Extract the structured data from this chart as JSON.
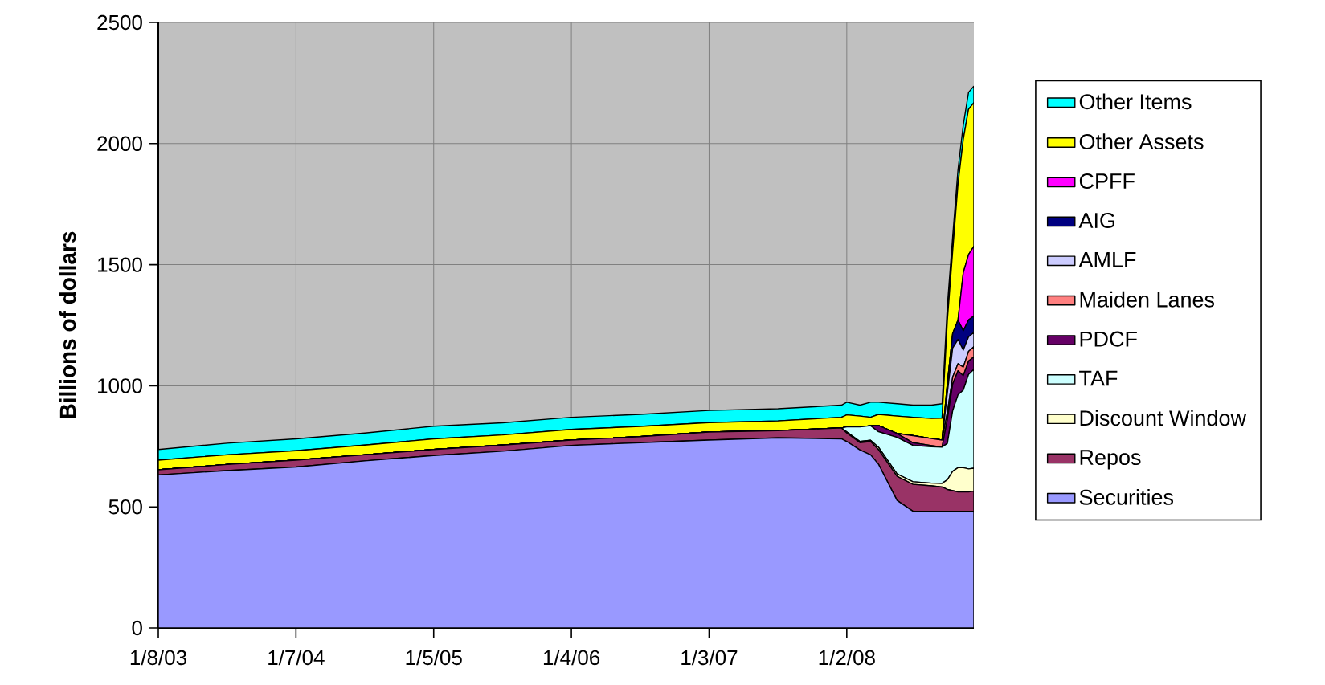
{
  "chart_data": {
    "type": "area",
    "stacked": true,
    "ylabel": "Billions of dollars",
    "grid": true,
    "legend": "right",
    "x": [
      "2003-01-08",
      "2003-07-09",
      "2004-01-07",
      "2004-07-07",
      "2005-01-05",
      "2005-07-06",
      "2006-01-04",
      "2006-07-05",
      "2007-01-03",
      "2007-07-04",
      "2007-12-19",
      "2008-01-02",
      "2008-02-06",
      "2008-03-05",
      "2008-03-26",
      "2008-05-14",
      "2008-06-25",
      "2008-08-13",
      "2008-09-10",
      "2008-09-24",
      "2008-10-08",
      "2008-10-22",
      "2008-11-05",
      "2008-11-19",
      "2008-12-03"
    ],
    "xlim": [
      "2003-01-08",
      "2008-12-03"
    ],
    "xticks": [
      {
        "value": "2003-01-08",
        "label": "1/8/03"
      },
      {
        "value": "2004-01-07",
        "label": "1/7/04"
      },
      {
        "value": "2005-01-05",
        "label": "1/5/05"
      },
      {
        "value": "2006-01-04",
        "label": "1/4/06"
      },
      {
        "value": "2007-01-03",
        "label": "1/3/07"
      },
      {
        "value": "2008-01-02",
        "label": "1/2/08"
      }
    ],
    "ylim": [
      0,
      2500
    ],
    "yticks": [
      0,
      500,
      1000,
      1500,
      2000,
      2500
    ],
    "series": [
      {
        "name": "Securities",
        "color": "#9999ff",
        "values": [
          632,
          650,
          665,
          690,
          712,
          730,
          754,
          765,
          776,
          785,
          781,
          770,
          735,
          715,
          676,
          527,
          482,
          482,
          482,
          482,
          482,
          482,
          482,
          482,
          482
        ]
      },
      {
        "name": "Repos",
        "color": "#993366",
        "values": [
          21,
          25,
          28,
          25,
          25,
          25,
          22,
          25,
          33,
          30,
          45,
          35,
          30,
          55,
          60,
          99,
          111,
          105,
          100,
          90,
          85,
          80,
          80,
          80,
          83
        ]
      },
      {
        "name": "Discount Window",
        "color": "#ffffcc",
        "values": [
          0,
          0,
          0,
          0,
          0,
          0,
          0,
          0,
          0,
          0,
          0,
          5,
          5,
          5,
          10,
          10,
          11,
          11,
          15,
          40,
          80,
          100,
          100,
          95,
          95
        ]
      },
      {
        "name": "TAF",
        "color": "#ccffff",
        "values": [
          0,
          0,
          0,
          0,
          0,
          0,
          0,
          0,
          0,
          0,
          0,
          20,
          60,
          60,
          64,
          151,
          150,
          150,
          150,
          150,
          250,
          300,
          320,
          390,
          408
        ]
      },
      {
        "name": "PDCF",
        "color": "#660066",
        "values": [
          0,
          0,
          0,
          0,
          0,
          0,
          0,
          0,
          0,
          0,
          0,
          0,
          0,
          0,
          26,
          16,
          11,
          5,
          0,
          100,
          110,
          100,
          60,
          55,
          51
        ]
      },
      {
        "name": "Maiden Lanes",
        "color": "#ff8080",
        "values": [
          0,
          0,
          0,
          0,
          0,
          0,
          0,
          0,
          0,
          0,
          0,
          0,
          0,
          0,
          0,
          0,
          29,
          29,
          29,
          29,
          29,
          29,
          35,
          40,
          42
        ]
      },
      {
        "name": "AMLF",
        "color": "#ccccff",
        "values": [
          0,
          0,
          0,
          0,
          0,
          0,
          0,
          0,
          0,
          0,
          0,
          0,
          0,
          0,
          0,
          0,
          0,
          0,
          0,
          80,
          120,
          100,
          70,
          60,
          59
        ]
      },
      {
        "name": "AIG",
        "color": "#000080",
        "values": [
          0,
          0,
          0,
          0,
          0,
          0,
          0,
          0,
          0,
          0,
          0,
          0,
          0,
          0,
          0,
          0,
          0,
          0,
          0,
          40,
          60,
          80,
          80,
          70,
          68
        ]
      },
      {
        "name": "CPFF",
        "color": "#ff00ff",
        "values": [
          0,
          0,
          0,
          0,
          0,
          0,
          0,
          0,
          0,
          0,
          0,
          0,
          0,
          0,
          0,
          0,
          0,
          0,
          0,
          0,
          0,
          0,
          240,
          270,
          288
        ]
      },
      {
        "name": "Other Assets",
        "color": "#ffff00",
        "values": [
          40,
          40,
          39,
          40,
          44,
          42,
          44,
          42,
          39,
          40,
          44,
          50,
          45,
          35,
          46,
          72,
          76,
          83,
          90,
          260,
          340,
          560,
          550,
          600,
          593
        ]
      },
      {
        "name": "Other Items",
        "color": "#00ffff",
        "values": [
          44,
          48,
          49,
          50,
          52,
          50,
          50,
          50,
          50,
          50,
          50,
          52,
          45,
          62,
          50,
          51,
          50,
          55,
          60,
          60,
          60,
          60,
          60,
          70,
          68
        ]
      }
    ]
  }
}
